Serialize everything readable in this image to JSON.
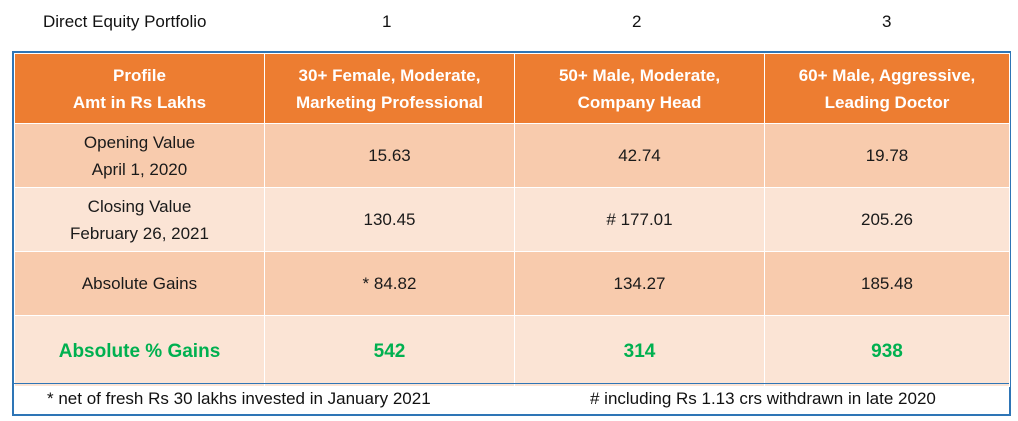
{
  "top": {
    "title": "Direct Equity Portfolio",
    "col1": "1",
    "col2": "2",
    "col3": "3"
  },
  "header": {
    "profile_line1": "Profile",
    "profile_line2": "Amt in Rs Lakhs",
    "c1_line1": "30+ Female, Moderate,",
    "c1_line2": "Marketing Professional",
    "c2_line1": "50+ Male, Moderate,",
    "c2_line2": "Company Head",
    "c3_line1": "60+ Male, Aggressive,",
    "c3_line2": "Leading Doctor"
  },
  "rows": {
    "opening": {
      "label_line1": "Opening Value",
      "label_line2": "April 1, 2020",
      "v1": "15.63",
      "v2": "42.74",
      "v3": "19.78"
    },
    "closing": {
      "label_line1": "Closing Value",
      "label_line2": "February 26, 2021",
      "v1": "130.45",
      "v2": "# 177.01",
      "v3": "205.26"
    },
    "absolute": {
      "label": "Absolute Gains",
      "v1": "* 84.82",
      "v2": "134.27",
      "v3": "185.48"
    },
    "percent": {
      "label": "Absolute % Gains",
      "v1": "542",
      "v2": "314",
      "v3": "938"
    }
  },
  "footnotes": {
    "left": "* net of fresh Rs 30 lakhs invested in January 2021",
    "right": "# including Rs 1.13 crs withdrawn in late 2020"
  },
  "colors": {
    "header_bg": "#ed7d31",
    "row_dark": "#f8cbad",
    "row_light": "#fbe4d5",
    "gain_text": "#00b050",
    "frame_border": "#2e75b6"
  }
}
